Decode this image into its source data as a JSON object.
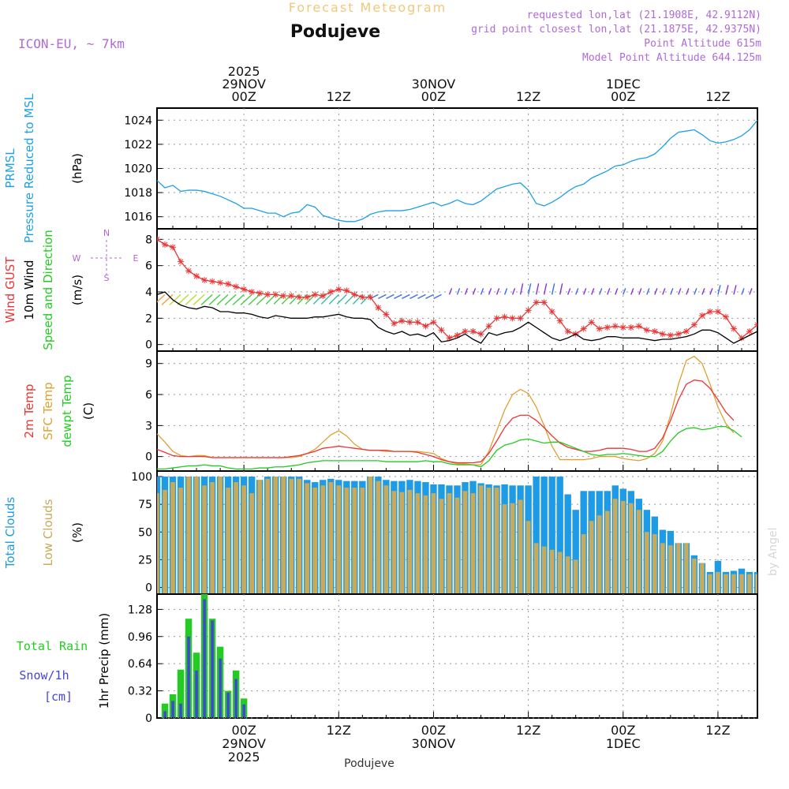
{
  "header": {
    "chart_title": "Forecast Meteogram",
    "location": "Podujeve",
    "model": "ICON-EU, ~ 7km",
    "requested": "requested lon,lat (21.1908E, 42.9112N)",
    "grid_point": "grid point closest lon,lat (21.1875E, 42.9375N)",
    "point_altitude": "Point Altitude 615m",
    "model_altitude": "Model Point Altitude 644.125m",
    "footer_location": "Podujeve",
    "watermark": "by Angel"
  },
  "colors": {
    "pressure": "#1ea0e6",
    "gust": "#ee3333",
    "wind": "#000000",
    "total_cloud": "#1e9be6",
    "low_cloud": "#c8aa5a",
    "rain": "#22cc22",
    "snow": "#4444dd",
    "t2m": "#ee3333",
    "sfc": "#e0a030",
    "dewpt": "#22cc22",
    "labels_purple": "#b06ad8"
  },
  "chart_data": {
    "time_axis": {
      "top_ticks": [
        {
          "h": 0,
          "lines": [
            "2025",
            "29NOV",
            "00Z"
          ]
        },
        {
          "h": 12,
          "lines": [
            "12Z"
          ]
        },
        {
          "h": 24,
          "lines": [
            "30NOV",
            "00Z"
          ]
        },
        {
          "h": 36,
          "lines": [
            "12Z"
          ]
        },
        {
          "h": 48,
          "lines": [
            "1DEC",
            "00Z"
          ]
        },
        {
          "h": 60,
          "lines": [
            "12Z"
          ]
        }
      ],
      "bottom_ticks": [
        {
          "h": 0,
          "lines": [
            "00Z",
            "29NOV",
            "2025"
          ]
        },
        {
          "h": 12,
          "lines": [
            "12Z"
          ]
        },
        {
          "h": 24,
          "lines": [
            "00Z",
            "30NOV"
          ]
        },
        {
          "h": 36,
          "lines": [
            "12Z"
          ]
        },
        {
          "h": 48,
          "lines": [
            "00Z",
            "1DEC"
          ]
        },
        {
          "h": 60,
          "lines": [
            "12Z"
          ]
        }
      ],
      "hour_range": [
        -11,
        65
      ]
    },
    "panels": [
      {
        "id": "pressure",
        "type": "line",
        "title": "PRMSL Pressure Reduced to MSL",
        "labels": [
          {
            "text": "PRMSL",
            "color": "#1ea0e6"
          },
          {
            "text": "Pressure Reduced to MSL",
            "color": "#1ea0e6"
          }
        ],
        "unit": "(hPa)",
        "ylim": [
          1015,
          1025
        ],
        "yticks": [
          1016,
          1018,
          1020,
          1022,
          1024
        ],
        "yticklabels": [
          "1016",
          "1018",
          "1020",
          "1022",
          "1024"
        ],
        "series": [
          {
            "name": "PRMSL",
            "color": "#1ea0e6",
            "start": -11,
            "values": [
              1019.0,
              1018.4,
              1018.6,
              1018.1,
              1018.2,
              1018.2,
              1018.1,
              1017.9,
              1017.7,
              1017.4,
              1017.1,
              1016.7,
              1016.7,
              1016.5,
              1016.3,
              1016.3,
              1016.0,
              1016.3,
              1016.4,
              1017.0,
              1016.8,
              1016.1,
              1015.9,
              1015.7,
              1015.6,
              1015.6,
              1015.8,
              1016.2,
              1016.4,
              1016.5,
              1016.5,
              1016.5,
              1016.6,
              1016.8,
              1017.0,
              1017.2,
              1016.9,
              1017.1,
              1017.4,
              1017.1,
              1017.0,
              1017.3,
              1017.8,
              1018.3,
              1018.5,
              1018.7,
              1018.8,
              1018.2,
              1017.1,
              1016.9,
              1017.2,
              1017.6,
              1018.1,
              1018.5,
              1018.7,
              1019.2,
              1019.5,
              1019.8,
              1020.2,
              1020.3,
              1020.6,
              1020.8,
              1020.9,
              1021.2,
              1021.8,
              1022.5,
              1023.0,
              1023.1,
              1023.2,
              1022.8,
              1022.3,
              1022.1,
              1022.2,
              1022.4,
              1022.7,
              1023.2,
              1024.0
            ]
          }
        ]
      },
      {
        "id": "wind",
        "type": "line",
        "title": "Wind GUST / 10m Wind Speed and Direction",
        "labels": [
          {
            "text": "Wind GUST",
            "color": "#ee3333"
          },
          {
            "text": "10m Wind",
            "color": "#000000"
          },
          {
            "text": "Speed and Direction",
            "color": "#22cc22"
          }
        ],
        "unit": "(m/s)",
        "compass": {
          "n": "N",
          "s": "S",
          "w": "W",
          "e": "E"
        },
        "ylim": [
          -0.5,
          8.8
        ],
        "yticks": [
          0,
          2,
          4,
          6,
          8
        ],
        "yticklabels": [
          "0",
          "2",
          "4",
          "6",
          "8"
        ],
        "series": [
          {
            "name": "Wind GUST",
            "color": "#ee3333",
            "marker": "star",
            "start": -11,
            "values": [
              8.0,
              7.6,
              7.4,
              6.3,
              5.6,
              5.2,
              4.9,
              4.8,
              4.7,
              4.6,
              4.4,
              4.2,
              4.0,
              3.9,
              3.8,
              3.8,
              3.7,
              3.7,
              3.6,
              3.6,
              3.8,
              3.7,
              4.0,
              4.2,
              4.1,
              3.8,
              3.6,
              3.6,
              2.8,
              2.3,
              1.6,
              1.8,
              1.7,
              1.7,
              1.4,
              1.7,
              1.1,
              0.5,
              0.7,
              1.0,
              1.0,
              0.8,
              1.4,
              2.0,
              2.1,
              2.0,
              2.0,
              2.6,
              3.2,
              3.2,
              2.5,
              1.8,
              1.0,
              0.8,
              1.2,
              1.7,
              1.2,
              1.3,
              1.4,
              1.3,
              1.3,
              1.4,
              1.1,
              1.0,
              0.8,
              0.7,
              0.8,
              1.0,
              1.5,
              2.2,
              2.5,
              2.5,
              2.1,
              1.2,
              0.5,
              1.0,
              1.5
            ]
          },
          {
            "name": "10m Wind",
            "color": "#000000",
            "start": -11,
            "values": [
              3.8,
              4.0,
              3.4,
              3.0,
              2.8,
              2.7,
              2.9,
              2.8,
              2.5,
              2.5,
              2.4,
              2.4,
              2.3,
              2.1,
              2.0,
              2.2,
              2.1,
              2.0,
              2.0,
              2.0,
              2.1,
              2.1,
              2.2,
              2.3,
              2.1,
              2.0,
              2.0,
              1.9,
              1.3,
              1.0,
              0.8,
              1.0,
              0.7,
              0.8,
              0.6,
              0.9,
              0.2,
              0.3,
              0.5,
              0.8,
              0.4,
              0.1,
              0.9,
              0.7,
              0.9,
              1.0,
              1.3,
              1.7,
              1.3,
              0.9,
              0.5,
              0.3,
              0.5,
              0.8,
              0.4,
              0.3,
              0.4,
              0.6,
              0.6,
              0.5,
              0.5,
              0.5,
              0.4,
              0.3,
              0.4,
              0.4,
              0.5,
              0.6,
              0.8,
              1.1,
              1.1,
              0.9,
              0.5,
              0.1,
              0.4,
              0.7,
              1.0
            ]
          }
        ],
        "arrows": {
          "note": "direction arrows drawn along ~4 m/s, barbs-like green hatching early, then blue/purple arrows",
          "colors": [
            "#f0a040",
            "#b8dd30",
            "#44cc44",
            "#30c0a0",
            "#3a6ee8",
            "#8a30d8"
          ]
        }
      },
      {
        "id": "temp",
        "type": "line",
        "title": "2m Temp / SFC Temp / dewpt Temp",
        "labels": [
          {
            "text": "2m Temp",
            "color": "#ee3333"
          },
          {
            "text": "SFC Temp",
            "color": "#e0a030"
          },
          {
            "text": "dewpt Temp",
            "color": "#22cc22"
          }
        ],
        "unit": "(C)",
        "ylim": [
          -1.4,
          10.2
        ],
        "yticks": [
          0,
          3,
          6,
          9
        ],
        "yticklabels": [
          "0",
          "3",
          "6",
          "9"
        ],
        "series": [
          {
            "name": "SFC Temp",
            "color": "#e0a030",
            "start": -11,
            "values": [
              2.2,
              1.4,
              0.5,
              0.1,
              0.0,
              0.1,
              0.1,
              -0.1,
              -0.1,
              -0.1,
              -0.1,
              -0.1,
              -0.1,
              -0.1,
              -0.1,
              -0.1,
              -0.1,
              -0.1,
              0.0,
              0.3,
              0.7,
              1.4,
              2.1,
              2.5,
              2.0,
              1.2,
              0.7,
              0.6,
              0.6,
              0.5,
              0.5,
              0.5,
              0.5,
              0.5,
              0.4,
              0.3,
              -0.2,
              -0.5,
              -0.7,
              -0.7,
              -0.8,
              -0.8,
              0.5,
              2.5,
              4.5,
              6.0,
              6.5,
              6.1,
              4.8,
              3.0,
              1.0,
              -0.3,
              -0.3,
              -0.3,
              -0.3,
              -0.2,
              0.0,
              0.0,
              0.0,
              -0.2,
              -0.3,
              -0.4,
              -0.2,
              0.3,
              1.5,
              4.0,
              7.0,
              9.3,
              9.7,
              9.0,
              7.0,
              4.8,
              3.2,
              2.3
            ]
          },
          {
            "name": "2m Temp",
            "color": "#ee3333",
            "start": -11,
            "values": [
              0.7,
              0.4,
              0.1,
              0.0,
              0.0,
              0.0,
              0.0,
              -0.1,
              -0.1,
              -0.1,
              -0.1,
              -0.1,
              -0.1,
              -0.1,
              -0.1,
              -0.1,
              -0.1,
              0.0,
              0.1,
              0.3,
              0.5,
              0.8,
              0.9,
              1.0,
              0.9,
              0.8,
              0.7,
              0.6,
              0.6,
              0.6,
              0.5,
              0.5,
              0.5,
              0.4,
              0.2,
              0.0,
              -0.3,
              -0.5,
              -0.6,
              -0.6,
              -0.6,
              -0.5,
              0.3,
              1.5,
              2.8,
              3.7,
              4.0,
              4.0,
              3.5,
              2.8,
              2.0,
              1.3,
              0.9,
              0.7,
              0.5,
              0.5,
              0.6,
              0.8,
              0.8,
              0.8,
              0.7,
              0.5,
              0.5,
              0.8,
              1.8,
              3.5,
              5.5,
              7.0,
              7.4,
              7.3,
              6.6,
              5.5,
              4.3,
              3.5
            ]
          },
          {
            "name": "dewpt Temp",
            "color": "#22cc22",
            "start": -11,
            "values": [
              -1.2,
              -1.2,
              -1.1,
              -1.0,
              -0.9,
              -0.9,
              -0.8,
              -0.9,
              -0.9,
              -1.1,
              -1.2,
              -1.2,
              -1.2,
              -1.1,
              -1.1,
              -1.0,
              -1.0,
              -0.9,
              -0.8,
              -0.6,
              -0.5,
              -0.4,
              -0.4,
              -0.4,
              -0.4,
              -0.4,
              -0.4,
              -0.4,
              -0.4,
              -0.5,
              -0.5,
              -0.5,
              -0.5,
              -0.5,
              -0.4,
              -0.5,
              -0.5,
              -0.7,
              -0.8,
              -0.8,
              -0.8,
              -1.0,
              -0.4,
              0.6,
              1.1,
              1.3,
              1.6,
              1.7,
              1.5,
              1.3,
              1.4,
              1.4,
              1.1,
              0.8,
              0.5,
              0.2,
              0.1,
              0.2,
              0.2,
              0.3,
              0.2,
              0.1,
              0.0,
              0.0,
              0.5,
              1.5,
              2.3,
              2.7,
              2.8,
              2.6,
              2.7,
              2.9,
              2.9,
              2.5,
              1.9
            ]
          }
        ]
      },
      {
        "id": "clouds",
        "type": "bar",
        "title": "Total Clouds / Low Clouds",
        "labels": [
          {
            "text": "Total Clouds",
            "color": "#1e9be6"
          },
          {
            "text": "Low Clouds",
            "color": "#c8aa5a"
          }
        ],
        "unit": "(%)",
        "ylim": [
          -6,
          105
        ],
        "yticks": [
          0,
          25,
          50,
          75,
          100
        ],
        "yticklabels": [
          "0",
          "25",
          "50",
          "75",
          "100"
        ],
        "start": -11,
        "series": [
          {
            "name": "Total Clouds",
            "color": "#1e9be6",
            "values": [
              100,
              100,
              100,
              100,
              100,
              100,
              100,
              100,
              100,
              100,
              100,
              100,
              100,
              97,
              100,
              100,
              100,
              100,
              100,
              97,
              95,
              97,
              98,
              97,
              96,
              96,
              96,
              100,
              100,
              97,
              96,
              96,
              97,
              96,
              95,
              93,
              93,
              92,
              92,
              95,
              96,
              94,
              93,
              92,
              93,
              92,
              92,
              92,
              100,
              100,
              100,
              100,
              84,
              70,
              87,
              87,
              87,
              87,
              92,
              89,
              87,
              80,
              70,
              64,
              52,
              51,
              40,
              40,
              29,
              22,
              14,
              24,
              14,
              15,
              17,
              14,
              14
            ]
          },
          {
            "name": "Low Clouds",
            "color": "#c8aa5a",
            "values": [
              85,
              88,
              95,
              90,
              100,
              100,
              92,
              95,
              100,
              90,
              95,
              92,
              85,
              97,
              98,
              100,
              100,
              98,
              98,
              94,
              90,
              92,
              95,
              92,
              90,
              90,
              90,
              100,
              96,
              92,
              87,
              86,
              88,
              85,
              83,
              85,
              80,
              85,
              81,
              87,
              85,
              92,
              90,
              90,
              75,
              76,
              79,
              60,
              40,
              37,
              34,
              32,
              28,
              25,
              48,
              60,
              65,
              69,
              80,
              78,
              76,
              70,
              50,
              48,
              40,
              38,
              40,
              40,
              26,
              22,
              12,
              14,
              12,
              12,
              12,
              12,
              12
            ]
          }
        ]
      },
      {
        "id": "precip",
        "type": "bar",
        "title": "1hr Precip (mm)",
        "labels": [
          {
            "text": "Total Rain",
            "color": "#22cc22"
          },
          {
            "text": "Snow/1h",
            "color": "#4444dd"
          },
          {
            "text": "[cm]",
            "color": "#4444dd"
          }
        ],
        "unit": "1hr Precip (mm)",
        "ylim": [
          0,
          1.46
        ],
        "yticks": [
          0,
          0.32,
          0.64,
          0.96,
          1.28
        ],
        "yticklabels": [
          "0",
          "0.32",
          "0.64",
          "0.96",
          "1.28"
        ],
        "start": -10,
        "series": [
          {
            "name": "Total Rain",
            "color": "#22cc22",
            "values": [
              0.17,
              0.28,
              0.57,
              1.17,
              0.77,
              1.47,
              1.17,
              0.84,
              0.32,
              0.56,
              0.23
            ]
          },
          {
            "name": "Snow/1h",
            "color": "#4444dd",
            "values": [
              0.08,
              0.2,
              0.17,
              0.96,
              0.56,
              1.4,
              1.15,
              0.7,
              0.3,
              0.46,
              0.16
            ]
          }
        ]
      }
    ]
  }
}
